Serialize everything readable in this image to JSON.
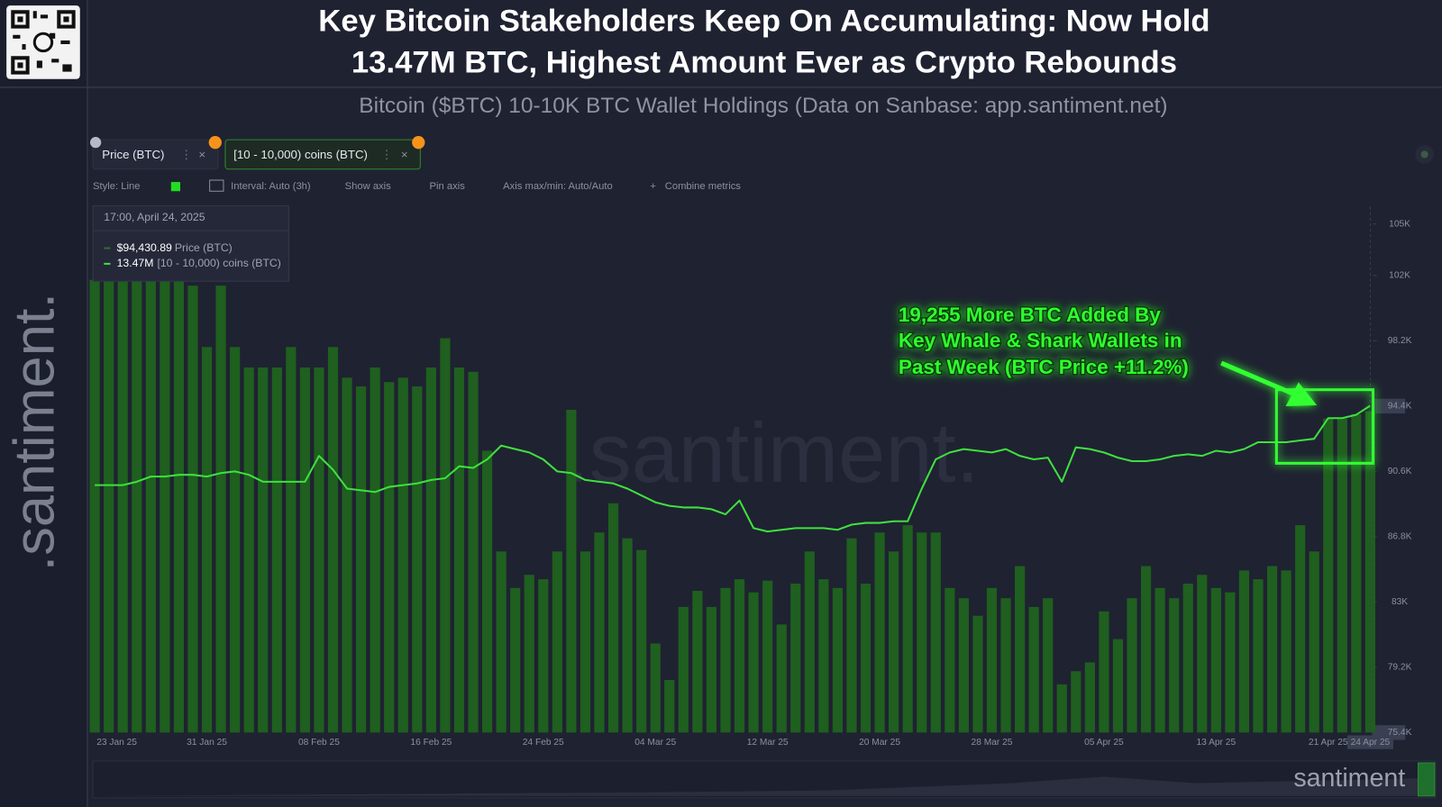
{
  "chart_data": {
    "type": "combo",
    "title": [
      "Key Bitcoin Stakeholders Keep On Accumulating: Now Hold",
      "13.47M BTC, Highest Amount Ever as Crypto Rebounds"
    ],
    "subtitle": "Bitcoin ($BTC) 10-10K BTC Wallet Holdings (Data on Sanbase: app.santiment.net)",
    "toolbar": [
      "Style: Line",
      "Interval: Auto (3h)",
      "Show axis",
      "Pin axis",
      "Axis max/min: Auto/Auto",
      "Combine metrics"
    ],
    "tooltip": {
      "date": "17:00, April 24, 2025",
      "price_label": "$94,430.89",
      "holdings_label": "13.47M"
    },
    "annotation": [
      "19,255 More BTC Added By",
      "Key Whale & Shark Wallets in",
      "Past Week (BTC Price +11.2%)"
    ],
    "watermark": ".santiment.",
    "footer_logo": "santiment",
    "categories": [
      "23 Jan 25",
      null,
      null,
      null,
      null,
      null,
      null,
      null,
      "31 Jan 25",
      null,
      null,
      null,
      null,
      null,
      null,
      null,
      "08 Feb 25",
      null,
      null,
      null,
      null,
      null,
      null,
      null,
      "16 Feb 25",
      null,
      null,
      null,
      null,
      null,
      null,
      null,
      "24 Feb 25",
      null,
      null,
      null,
      null,
      null,
      null,
      null,
      "04 Mar 25",
      null,
      null,
      null,
      null,
      null,
      null,
      null,
      "12 Mar 25",
      null,
      null,
      null,
      null,
      null,
      null,
      null,
      "20 Mar 25",
      null,
      null,
      null,
      null,
      null,
      null,
      null,
      "28 Mar 25",
      null,
      null,
      null,
      null,
      null,
      null,
      null,
      "05 Apr 25",
      null,
      null,
      null,
      null,
      null,
      null,
      null,
      "13 Apr 25",
      null,
      null,
      null,
      null,
      null,
      null,
      null,
      "21 Apr 25",
      null,
      null,
      "24 Apr 25"
    ],
    "series": [
      {
        "name": "[10 - 10,000) coins (BTC)",
        "type": "bar",
        "axis": "y2",
        "color": "#1f5f1f",
        "values": [
          13.56,
          13.56,
          13.56,
          13.56,
          13.56,
          13.56,
          13.56,
          13.556,
          13.514,
          13.556,
          13.514,
          13.5,
          13.5,
          13.5,
          13.514,
          13.5,
          13.5,
          13.514,
          13.493,
          13.487,
          13.5,
          13.49,
          13.493,
          13.487,
          13.5,
          13.52,
          13.5,
          13.497,
          13.443,
          13.374,
          13.349,
          13.358,
          13.355,
          13.374,
          13.471,
          13.374,
          13.387,
          13.407,
          13.383,
          13.375,
          13.311,
          13.286,
          13.336,
          13.347,
          13.336,
          13.349,
          13.355,
          13.346,
          13.354,
          13.324,
          13.352,
          13.374,
          13.355,
          13.349,
          13.383,
          13.352,
          13.387,
          13.374,
          13.392,
          13.387,
          13.387,
          13.349,
          13.342,
          13.33,
          13.349,
          13.342,
          13.364,
          13.336,
          13.342,
          13.283,
          13.292,
          13.298,
          13.333,
          13.314,
          13.342,
          13.364,
          13.349,
          13.342,
          13.352,
          13.358,
          13.349,
          13.346,
          13.361,
          13.355,
          13.364,
          13.361,
          13.392,
          13.374,
          13.465,
          13.465,
          13.468,
          13.47
        ]
      },
      {
        "name": "Price (BTC)",
        "type": "line",
        "color": "#3fe03f",
        "values": [
          89800,
          89800,
          89800,
          90000,
          90300,
          90300,
          90400,
          90400,
          90300,
          90500,
          90600,
          90400,
          90000,
          90000,
          90000,
          90000,
          91500,
          90700,
          89600,
          89500,
          89400,
          89700,
          89800,
          89900,
          90100,
          90200,
          90900,
          90800,
          91300,
          92100,
          91900,
          91700,
          91300,
          90600,
          90500,
          90100,
          90000,
          89900,
          89600,
          89200,
          88800,
          88600,
          88500,
          88500,
          88400,
          88100,
          88900,
          87300,
          87100,
          87200,
          87300,
          87300,
          87300,
          87200,
          87500,
          87600,
          87600,
          87700,
          87700,
          89600,
          91300,
          91700,
          91900,
          91800,
          91700,
          91900,
          91500,
          91300,
          91400,
          90000,
          92000,
          91900,
          91700,
          91400,
          91200,
          91200,
          91300,
          91500,
          91600,
          91500,
          91800,
          91700,
          91900,
          92300,
          92300,
          92300,
          92400,
          92500,
          93700,
          93700,
          93900,
          94430.89
        ]
      }
    ],
    "ylim": [
      75400,
      106000
    ],
    "yticks": [
      {
        "value": 75400,
        "label": "75.4K"
      },
      {
        "value": 79200,
        "label": "79.2K"
      },
      {
        "value": 83000,
        "label": "83K"
      },
      {
        "value": 86800,
        "label": "86.8K"
      },
      {
        "value": 90600,
        "label": "90.6K"
      },
      {
        "value": 94400,
        "label": "94.4K"
      },
      {
        "value": 98200,
        "label": "98.2K"
      },
      {
        "value": 102000,
        "label": "102K"
      },
      {
        "value": 105000,
        "label": "105K"
      }
    ],
    "y2lim": [
      13.25,
      13.61
    ],
    "grid": false
  }
}
